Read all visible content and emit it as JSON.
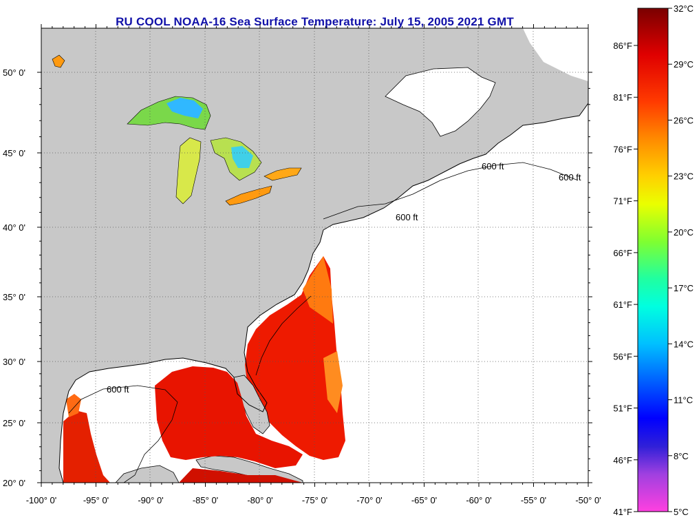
{
  "title": "RU COOL  NOAA-16  Sea Surface Temperature:  July 15, 2005 2021 GMT",
  "map": {
    "lon_range": [
      -100,
      -50
    ],
    "lat_range": [
      20,
      52.5
    ],
    "lon_ticks": [
      "-100° 0'",
      "-95° 0'",
      "-90° 0'",
      "-85° 0'",
      "-80° 0'",
      "-75° 0'",
      "-70° 0'",
      "-65° 0'",
      "-60° 0'",
      "-55° 0'",
      "-50° 0'"
    ],
    "lat_ticks": [
      "50° 0'",
      "45° 0'",
      "40° 0'",
      "35° 0'",
      "30° 0'",
      "25° 0'",
      "20° 0'"
    ],
    "land_color": "#c8c8c8",
    "no_data_color": "#ffffff",
    "grid": true,
    "isobath_label": "600 ft"
  },
  "colorbar": {
    "range_c": [
      5,
      32
    ],
    "celsius_labels": [
      "32°C",
      "29°C",
      "26°C",
      "23°C",
      "20°C",
      "17°C",
      "14°C",
      "11°C",
      "8°C",
      "5°C"
    ],
    "fahrenheit_labels": [
      "86°F",
      "81°F",
      "76°F",
      "71°F",
      "66°F",
      "61°F",
      "56°F",
      "51°F",
      "46°F",
      "41°F"
    ],
    "stops": [
      {
        "c": 32,
        "color": "#7a0000"
      },
      {
        "c": 29.5,
        "color": "#e00000"
      },
      {
        "c": 27,
        "color": "#ff3a00"
      },
      {
        "c": 25,
        "color": "#ff8a00"
      },
      {
        "c": 23,
        "color": "#ffd000"
      },
      {
        "c": 21.5,
        "color": "#eaff00"
      },
      {
        "c": 19.5,
        "color": "#80ff30"
      },
      {
        "c": 17.5,
        "color": "#20ffa0"
      },
      {
        "c": 16,
        "color": "#00ffe0"
      },
      {
        "c": 14,
        "color": "#00c0ff"
      },
      {
        "c": 12,
        "color": "#0060ff"
      },
      {
        "c": 10,
        "color": "#0000ff"
      },
      {
        "c": 8.5,
        "color": "#3020d8"
      },
      {
        "c": 7,
        "color": "#a040e0"
      },
      {
        "c": 5,
        "color": "#ff40e0"
      }
    ]
  }
}
